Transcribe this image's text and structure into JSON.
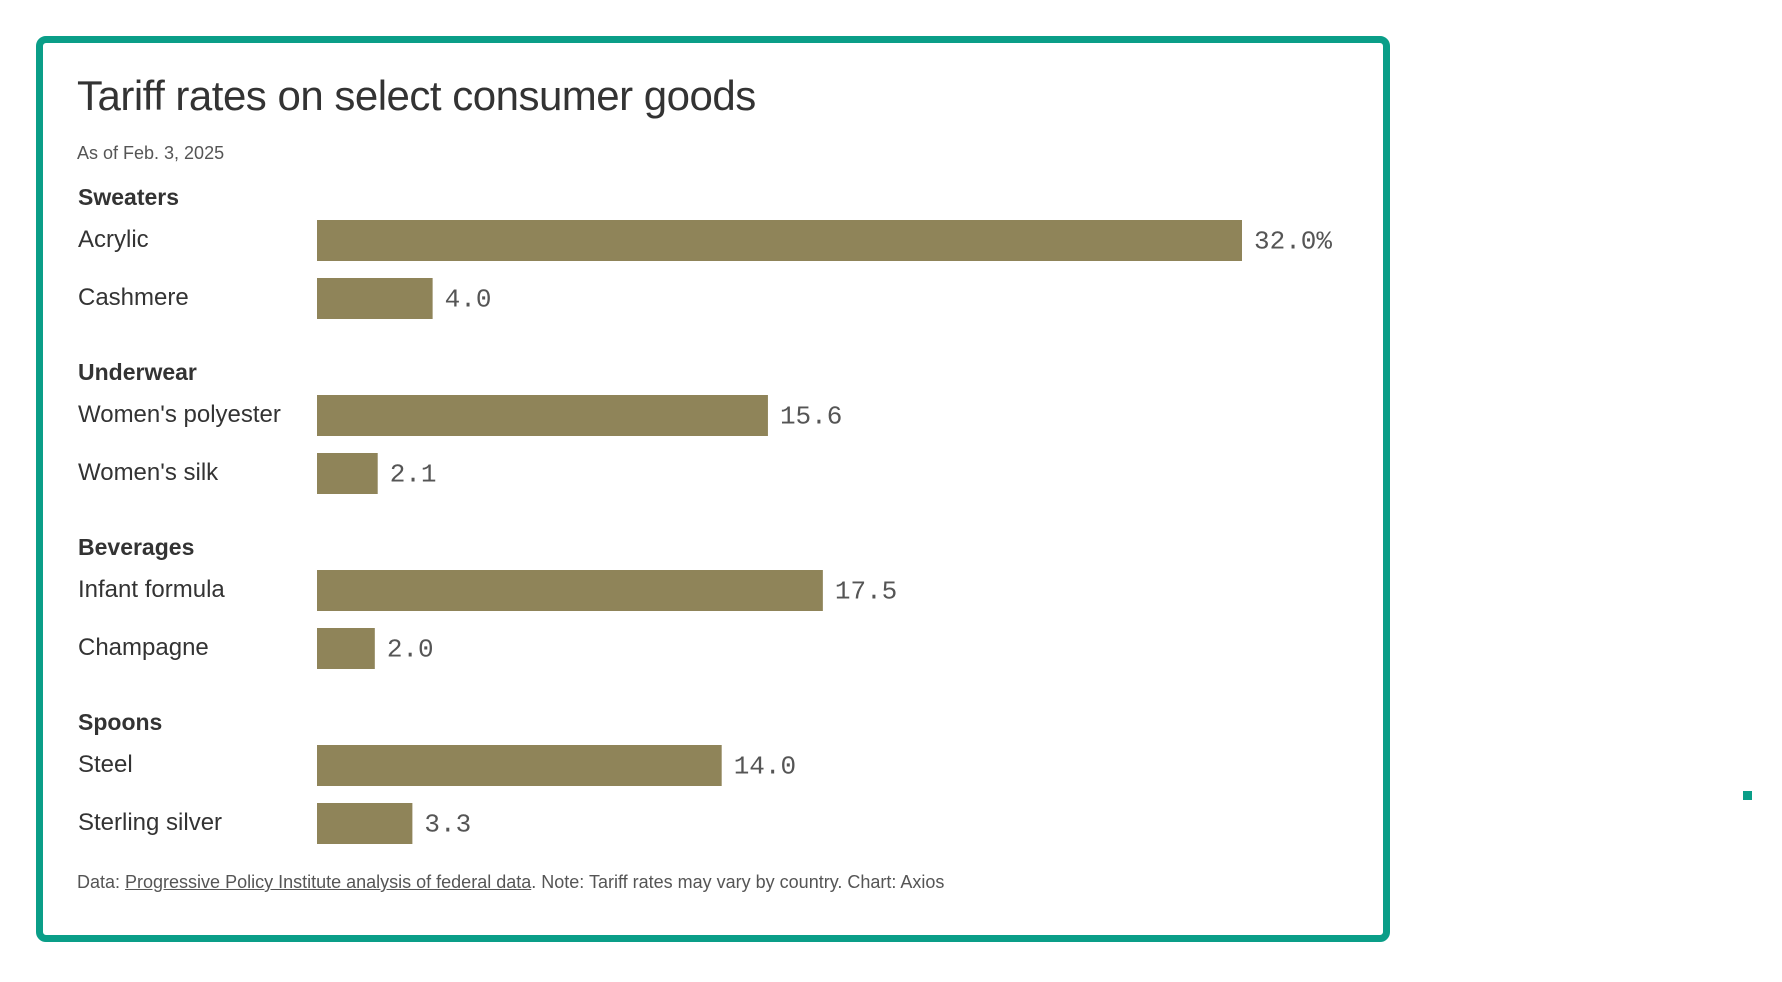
{
  "chart_data": {
    "type": "bar",
    "orientation": "horizontal",
    "title": "Tariff rates on select consumer goods",
    "subtitle": "As of Feb. 3, 2025",
    "bar_color": "#8f8459",
    "frame_color": "#0a9e88",
    "xlim": [
      0,
      32
    ],
    "groups": [
      {
        "name": "Sweaters",
        "items": [
          {
            "label": "Acrylic",
            "value": 32.0,
            "value_label": "32.0%"
          },
          {
            "label": "Cashmere",
            "value": 4.0,
            "value_label": "4.0"
          }
        ]
      },
      {
        "name": "Underwear",
        "items": [
          {
            "label": "Women's polyester",
            "value": 15.6,
            "value_label": "15.6"
          },
          {
            "label": "Women's silk",
            "value": 2.1,
            "value_label": "2.1"
          }
        ]
      },
      {
        "name": "Beverages",
        "items": [
          {
            "label": "Infant formula",
            "value": 17.5,
            "value_label": "17.5"
          },
          {
            "label": "Champagne",
            "value": 2.0,
            "value_label": "2.0"
          }
        ]
      },
      {
        "name": "Spoons",
        "items": [
          {
            "label": "Steel",
            "value": 14.0,
            "value_label": "14.0"
          },
          {
            "label": "Sterling silver",
            "value": 3.3,
            "value_label": "3.3"
          }
        ]
      }
    ]
  },
  "footer": {
    "prefix": "Data: ",
    "source_link": "Progressive Policy Institute analysis of federal data",
    "suffix": ". Note: Tariff rates may vary by country. Chart: Axios"
  }
}
